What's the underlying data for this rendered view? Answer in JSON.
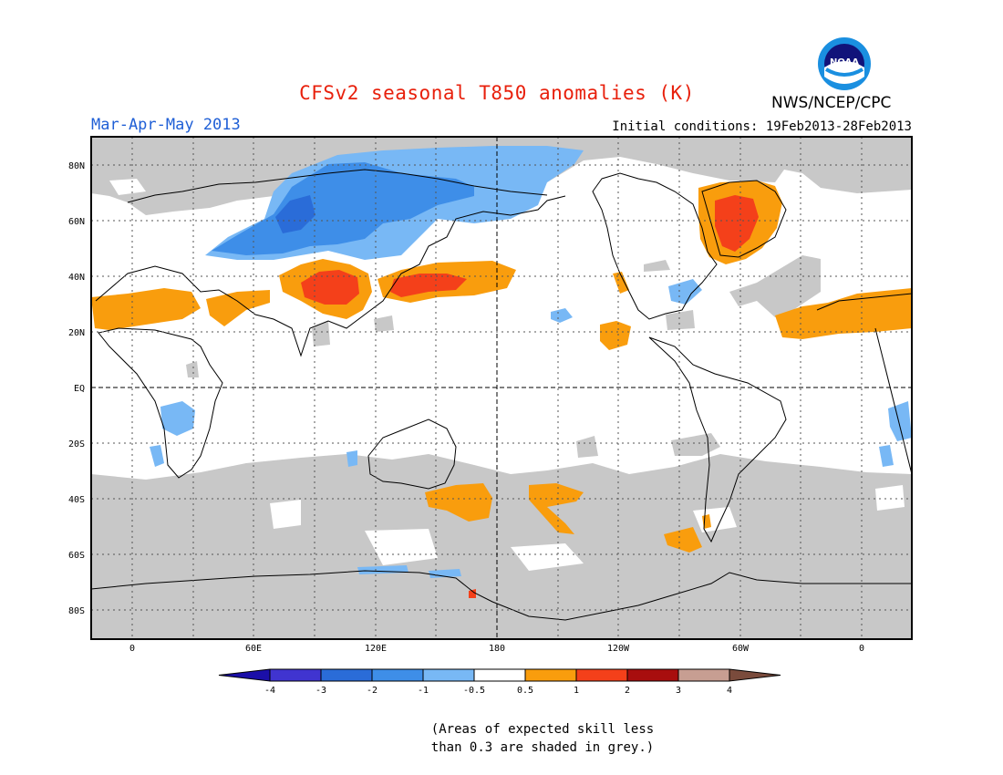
{
  "header": {
    "title": "CFSv2 seasonal T850 anomalies (K)",
    "season": "Mar-Apr-May 2013",
    "initial_conditions": "Initial conditions: 19Feb2013-28Feb2013",
    "agency": "NWS/NCEP/CPC",
    "logo_text": "NOAA"
  },
  "map": {
    "lat_labels": [
      "80N",
      "60N",
      "40N",
      "20N",
      "EQ",
      "20S",
      "40S",
      "60S",
      "80S"
    ],
    "lon_labels": [
      "0",
      "60E",
      "120E",
      "180",
      "120W",
      "60W",
      "0"
    ]
  },
  "legend": {
    "bins": [
      {
        "color": "#1b0fa8"
      },
      {
        "color": "#4034d0"
      },
      {
        "color": "#2a6cd8"
      },
      {
        "color": "#3e8ee8"
      },
      {
        "color": "#78b8f5"
      },
      {
        "color": "#ffffff"
      },
      {
        "color": "#f99d0d"
      },
      {
        "color": "#f4401a"
      },
      {
        "color": "#a80e0e"
      },
      {
        "color": "#c79e92"
      },
      {
        "color": "#7a4b3c"
      }
    ],
    "ticks": [
      "-4",
      "-3",
      "-2",
      "-1",
      "-0.5",
      "0.5",
      "1",
      "2",
      "3",
      "4"
    ],
    "skill_mask_color": "#c8c8c8"
  },
  "footnote": {
    "line1": "(Areas of expected skill less",
    "line2": "than 0.3 are shaded in grey.)"
  }
}
